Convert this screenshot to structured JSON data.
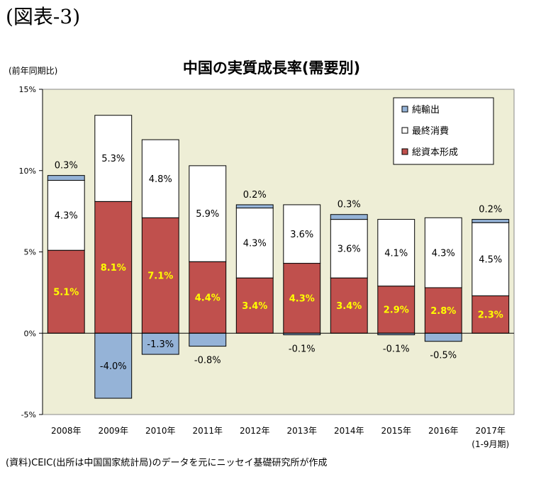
{
  "figure_label": "(図表-3)",
  "source_note": "(資料)CEIC(出所は中国国家統計局)のデータを元にニッセイ基礎研究所が作成",
  "chart_data": {
    "type": "bar",
    "stacked": true,
    "title": "中国の実質成長率(需要別)",
    "unit_label": "(前年同期比)",
    "ylim": [
      -5,
      15
    ],
    "yticks": [
      -5,
      0,
      5,
      10,
      15
    ],
    "ytick_labels": [
      "-5%",
      "0%",
      "5%",
      "10%",
      "15%"
    ],
    "categories": [
      "2008年",
      "2009年",
      "2010年",
      "2011年",
      "2012年",
      "2013年",
      "2014年",
      "2015年",
      "2016年",
      "2017年"
    ],
    "category_sublabels": [
      "",
      "",
      "",
      "",
      "",
      "",
      "",
      "",
      "",
      "(1-9月期)"
    ],
    "legend_position": "top-right",
    "series": [
      {
        "name": "総資本形成",
        "color": "#c0504d",
        "label_color": "#ffff00",
        "values": [
          5.1,
          8.1,
          7.1,
          4.4,
          3.4,
          4.3,
          3.4,
          2.9,
          2.8,
          2.3
        ],
        "labels": [
          "5.1%",
          "8.1%",
          "7.1%",
          "4.4%",
          "3.4%",
          "4.3%",
          "3.4%",
          "2.9%",
          "2.8%",
          "2.3%"
        ]
      },
      {
        "name": "最終消費",
        "color": "#ffffff",
        "label_color": "#000000",
        "values": [
          4.3,
          5.3,
          4.8,
          5.9,
          4.3,
          3.6,
          3.6,
          4.1,
          4.3,
          4.5
        ],
        "labels": [
          "4.3%",
          "5.3%",
          "4.8%",
          "5.9%",
          "4.3%",
          "3.6%",
          "3.6%",
          "4.1%",
          "4.3%",
          "4.5%"
        ]
      },
      {
        "name": "純輸出",
        "color": "#95b3d7",
        "label_color": "#000000",
        "values": [
          0.3,
          -4.0,
          -1.3,
          -0.8,
          0.2,
          -0.1,
          0.3,
          -0.1,
          -0.5,
          0.2
        ],
        "labels": [
          "0.3%",
          "-4.0%",
          "-1.3%",
          "-0.8%",
          "0.2%",
          "-0.1%",
          "0.3%",
          "-0.1%",
          "-0.5%",
          "0.2%"
        ]
      }
    ],
    "legend_order": [
      "純輸出",
      "最終消費",
      "総資本形成"
    ],
    "plot_background": "#eeeed6"
  }
}
